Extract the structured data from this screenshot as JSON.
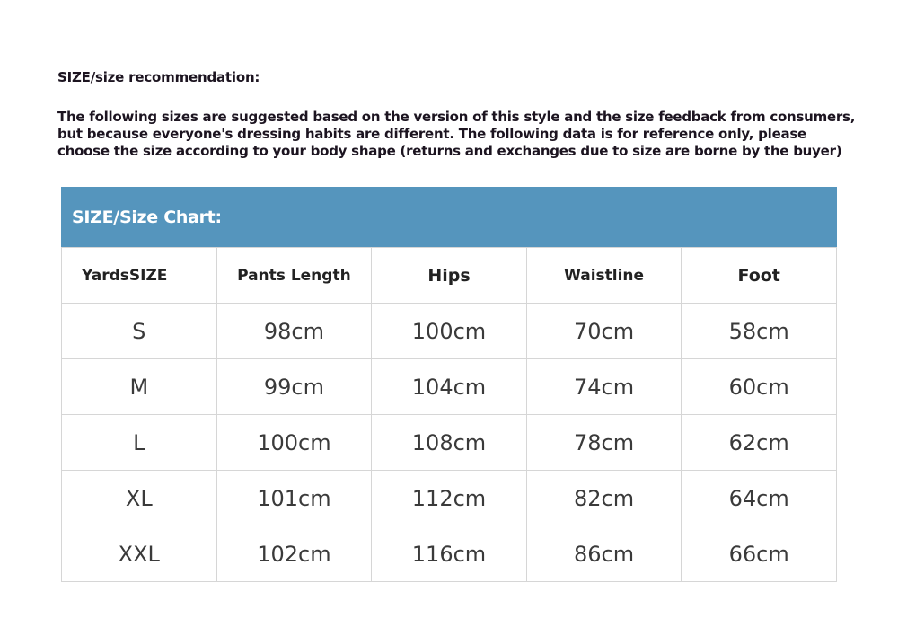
{
  "intro": {
    "title": "SIZE/size recommendation:",
    "body": "The following sizes are suggested based on the version of this style and the size feedback from consumers, but because everyone's dressing habits are different. The following data is for reference only, please choose the size according to your body shape (returns and exchanges due to size are borne by the buyer)"
  },
  "chart": {
    "title": "SIZE/Size Chart:",
    "header_color": "#5595bd",
    "columns": [
      "YardsSIZE",
      "Pants Length",
      "Hips",
      "Waistline",
      "Foot"
    ],
    "rows": [
      [
        "S",
        "98cm",
        "100cm",
        "70cm",
        "58cm"
      ],
      [
        "M",
        "99cm",
        "104cm",
        "74cm",
        "60cm"
      ],
      [
        "L",
        "100cm",
        "108cm",
        "78cm",
        "62cm"
      ],
      [
        "XL",
        "101cm",
        "112cm",
        "82cm",
        "64cm"
      ],
      [
        "XXL",
        "102cm",
        "116cm",
        "86cm",
        "66cm"
      ]
    ]
  }
}
